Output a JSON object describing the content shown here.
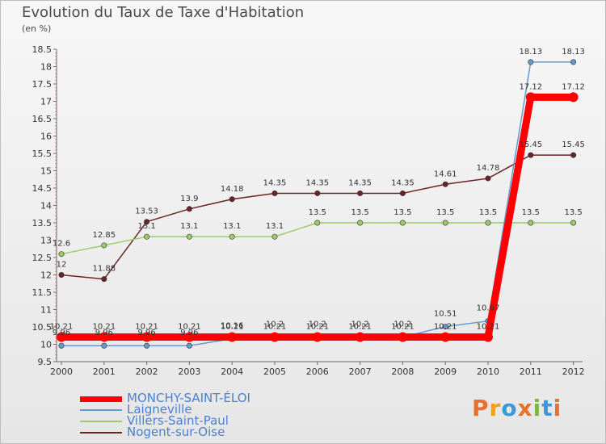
{
  "header": {
    "title": "Evolution du Taux de Taxe d'Habitation",
    "unit": "(en %)"
  },
  "logo": {
    "text": "Proxiti",
    "colors": [
      "#e8702a",
      "#f0a020",
      "#3a9ad9",
      "#e8702a",
      "#7ab648",
      "#3a9ad9",
      "#e8702a"
    ]
  },
  "chart_data": {
    "type": "line",
    "x": [
      "2000",
      "2001",
      "2002",
      "2003",
      "2004",
      "2005",
      "2006",
      "2007",
      "2008",
      "2009",
      "2010",
      "2011",
      "2012"
    ],
    "ylim": [
      9.5,
      18.5
    ],
    "yticks": [
      "9.5",
      "10",
      "10.5",
      "11",
      "11.5",
      "12",
      "12.5",
      "13",
      "13.5",
      "14",
      "14.5",
      "15",
      "15.5",
      "16",
      "16.5",
      "17",
      "17.5",
      "18",
      "18.5"
    ],
    "grid": false,
    "legend_position": "bottom-left",
    "series": [
      {
        "name": "MONCHY-SAINT-ÉLOI",
        "color": "#ff0000",
        "values": [
          10.21,
          10.21,
          10.21,
          10.21,
          10.21,
          10.21,
          10.21,
          10.21,
          10.21,
          10.21,
          10.21,
          17.12,
          17.12
        ],
        "labels": [
          "10.21",
          "10.21",
          "10.21",
          "10.21",
          "10.21",
          "10.21",
          "10.21",
          "10.21",
          "10.21",
          "10.21",
          "10.21",
          "17.12",
          "17.12"
        ]
      },
      {
        "name": "Laigneville",
        "color": "#6699cc",
        "values": [
          9.96,
          9.96,
          9.96,
          9.96,
          10.16,
          10.21,
          10.21,
          10.21,
          10.21,
          10.51,
          10.67,
          18.13,
          18.13
        ],
        "labels": [
          "9.96",
          "9.96",
          "9.96",
          "9.96",
          "10.16",
          "10.2",
          "10.2",
          "10.2",
          "10.2",
          "10.51",
          "10.67",
          "18.13",
          "18.13"
        ]
      },
      {
        "name": "Villers-Saint-Paul",
        "color": "#99cc66",
        "values": [
          12.6,
          12.85,
          13.1,
          13.1,
          13.1,
          13.1,
          13.5,
          13.5,
          13.5,
          13.5,
          13.5,
          13.5,
          13.5
        ],
        "labels": [
          "12.6",
          "12.85",
          "13.1",
          "13.1",
          "13.1",
          "13.1",
          "13.5",
          "13.5",
          "13.5",
          "13.5",
          "13.5",
          "13.5",
          "13.5"
        ]
      },
      {
        "name": "Nogent-sur-Oise",
        "color": "#6b2424",
        "values": [
          12,
          11.88,
          13.53,
          13.9,
          14.18,
          14.35,
          14.35,
          14.35,
          14.35,
          14.61,
          14.78,
          15.45,
          15.45
        ],
        "labels": [
          "12",
          "11.88",
          "13.53",
          "13.9",
          "14.18",
          "14.35",
          "14.35",
          "14.35",
          "14.35",
          "14.61",
          "14.78",
          "15.45",
          "15.45"
        ]
      }
    ]
  }
}
